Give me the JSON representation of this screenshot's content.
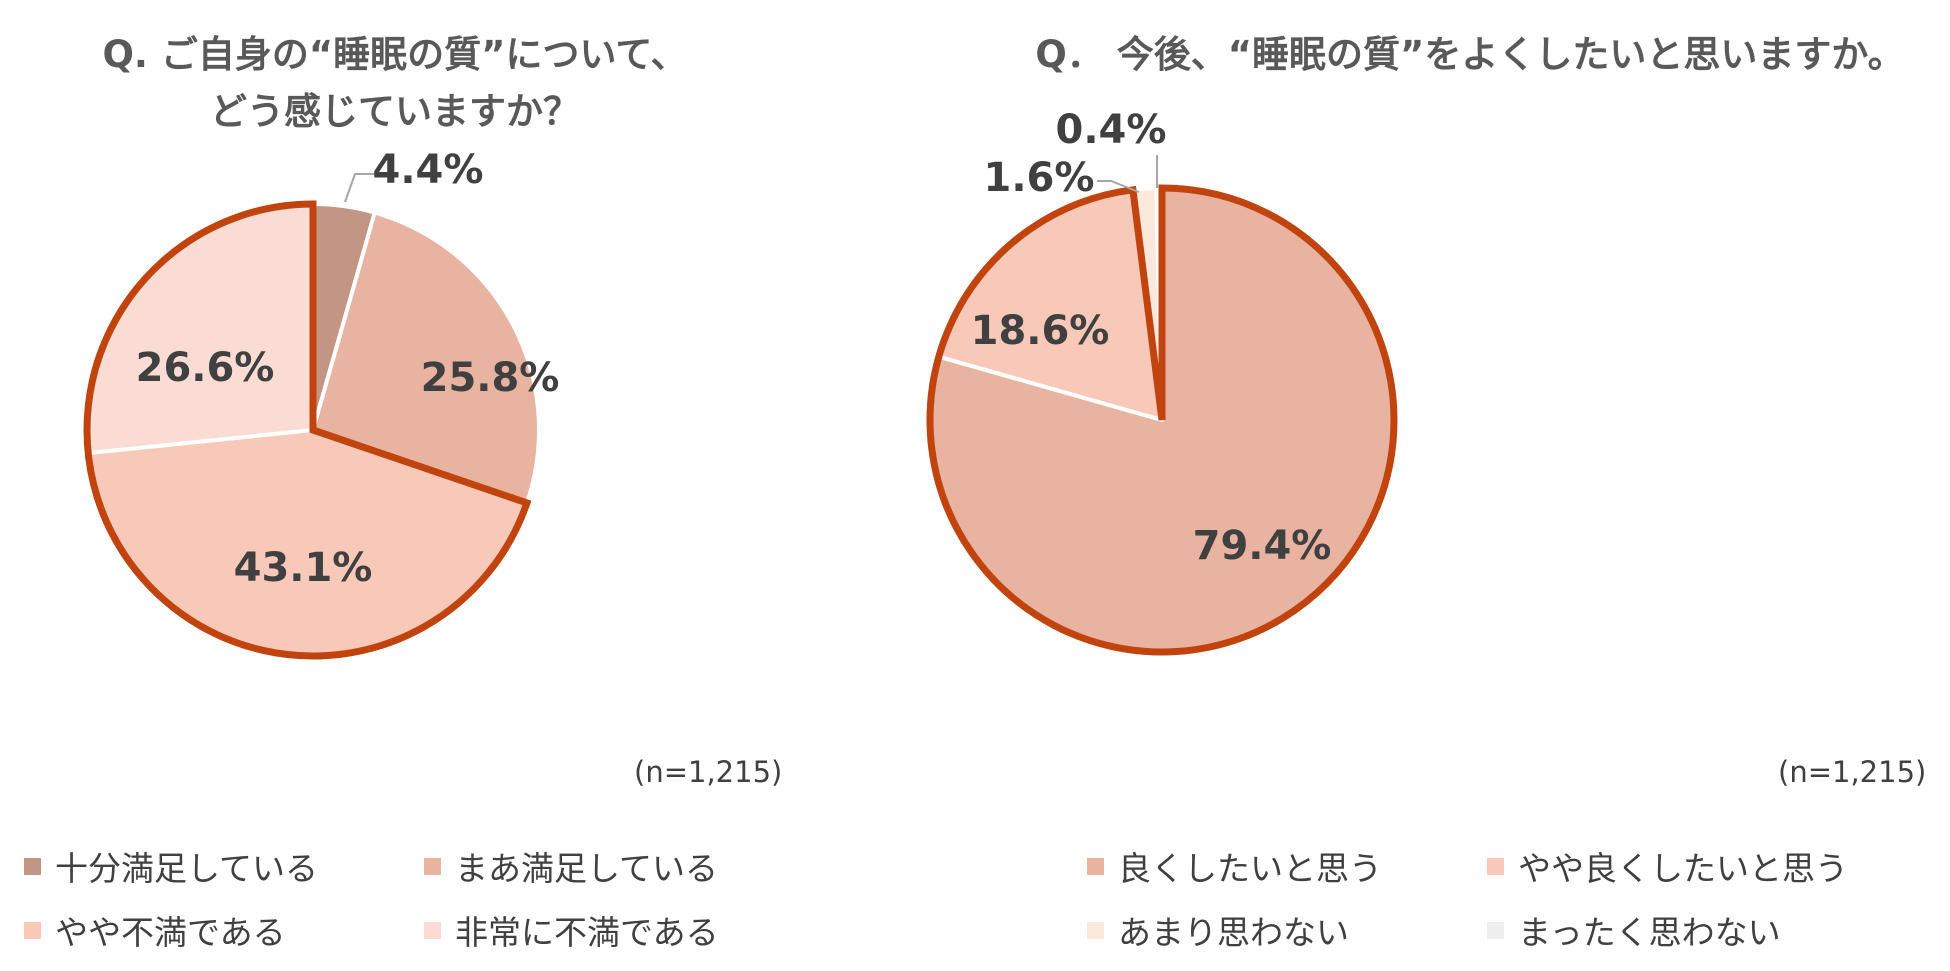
{
  "chart_data": [
    {
      "type": "pie",
      "title_lines": [
        "Q.  ご自身の“睡眠の質”について、",
        "どう感じていますか？"
      ],
      "note": "(n=1,215)",
      "legend_labels": [
        "十分満足している",
        "まあ満足している",
        "やや不満である",
        "非常に不満である"
      ],
      "slices": [
        {
          "label": "十分満足している",
          "value": 4.4,
          "value_label": "4.4%",
          "color": "#c39585"
        },
        {
          "label": "まあ満足している",
          "value": 25.8,
          "value_label": "25.8%",
          "color": "#e8b3a0"
        },
        {
          "label": "やや不満である",
          "value": 43.1,
          "value_label": "43.1%",
          "color": "#f8c8b8"
        },
        {
          "label": "非常に不満である",
          "value": 26.6,
          "value_label": "26.6%",
          "color": "#fadcd4"
        }
      ],
      "highlight_color": "#c1440e",
      "highlight_slices": [
        2,
        3
      ]
    },
    {
      "type": "pie",
      "title_lines": [
        "Q．  今後、“睡眠の質”をよくしたいと思いますか。"
      ],
      "note": "(n=1,215)",
      "legend_labels": [
        "良くしたいと思う",
        "やや良くしたいと思う",
        "あまり思わない",
        "まったく思わない"
      ],
      "slices": [
        {
          "label": "良くしたいと思う",
          "value": 79.4,
          "value_label": "79.4%",
          "color": "#e8b3a0"
        },
        {
          "label": "やや良くしたいと思う",
          "value": 18.6,
          "value_label": "18.6%",
          "color": "#f8c8b8"
        },
        {
          "label": "あまり思わない",
          "value": 1.6,
          "value_label": "1.6%",
          "color": "#fde8dc"
        },
        {
          "label": "まったく思わない",
          "value": 0.4,
          "value_label": "0.4%",
          "color": "#eeeeee"
        }
      ],
      "highlight_color": "#c1440e",
      "highlight_slices": [
        0,
        1
      ]
    }
  ]
}
